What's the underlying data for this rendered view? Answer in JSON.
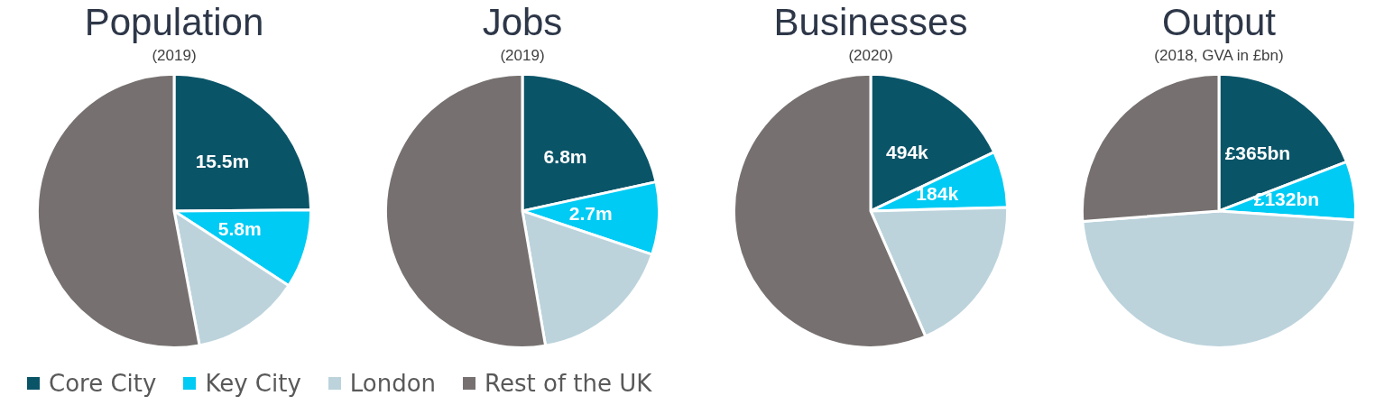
{
  "chart_data": [
    {
      "type": "pie",
      "title": "Population",
      "subtitle": "(2019)",
      "categories": [
        "Core City",
        "Key City",
        "London",
        "Rest of the UK"
      ],
      "values": [
        15.5,
        5.8,
        8,
        33
      ],
      "value_labels": [
        "15.5m",
        "5.8m",
        null,
        null
      ],
      "colors": [
        "#0a5468",
        "#00cbf4",
        "#bcd3dc",
        "#767170"
      ],
      "legend": "bottom"
    },
    {
      "type": "pie",
      "title": "Jobs",
      "subtitle": "(2019)",
      "categories": [
        null,
        null,
        null,
        null
      ],
      "values": [
        6.8,
        2.7,
        5.4,
        16.6
      ],
      "value_labels": [
        "6.8m",
        "2.7m",
        null,
        null
      ],
      "colors": [
        "#0a5468",
        "#00cbf4",
        "#bcd3dc",
        "#767170"
      ]
    },
    {
      "type": "pie",
      "title": "Businesses",
      "subtitle": "(2020)",
      "categories": [
        null,
        null,
        null,
        null
      ],
      "values": [
        494,
        184,
        520,
        1560
      ],
      "value_labels": [
        "494k",
        "184k",
        null,
        null
      ],
      "colors": [
        "#0a5468",
        "#00cbf4",
        "#bcd3dc",
        "#767170"
      ]
    },
    {
      "type": "pie",
      "title": "Output",
      "subtitle": "(2018, GVA in £bn)",
      "categories": [
        null,
        null,
        null,
        null
      ],
      "values": [
        365,
        132,
        910,
        500
      ],
      "value_labels": [
        "£365bn",
        "£132bn",
        null,
        null
      ],
      "colors": [
        "#0a5468",
        "#00cbf4",
        "#bcd3dc",
        "#767170"
      ]
    }
  ]
}
